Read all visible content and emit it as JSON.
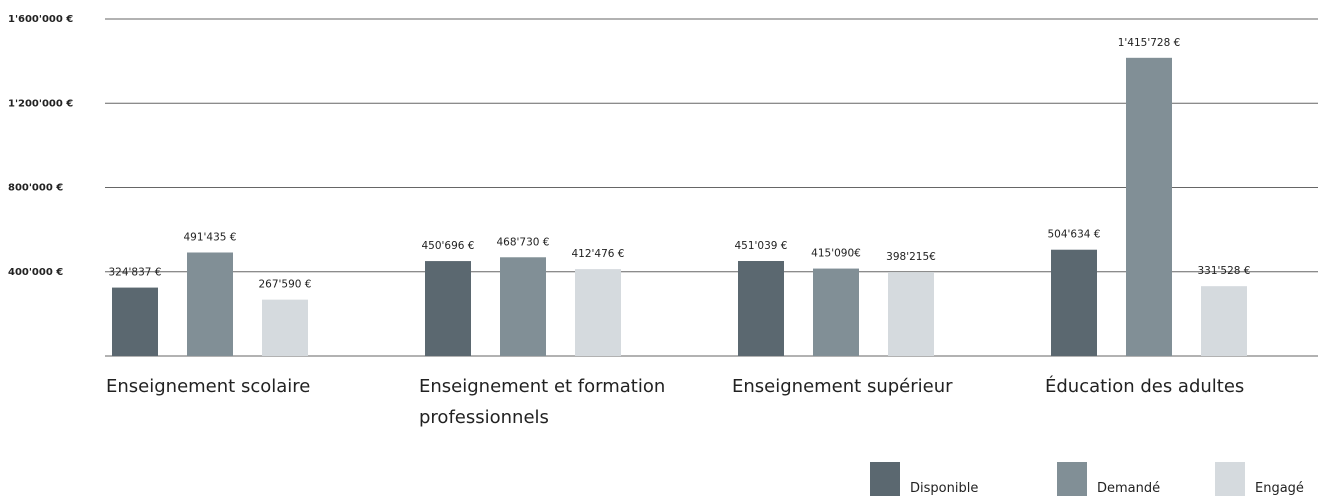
{
  "chart_data": {
    "type": "bar",
    "categories": [
      "Enseignement scolaire",
      "Enseignement et formation professionnels",
      "Enseignement supérieur",
      "Éducation des adultes"
    ],
    "series": [
      {
        "name": "Disponible",
        "color": "#5b6870",
        "values": [
          324837,
          450696,
          451039,
          504634
        ],
        "value_labels": [
          "324'837 €",
          "450'696 €",
          "451'039 €",
          "504'634 €"
        ]
      },
      {
        "name": "Demandé",
        "color": "#818f96",
        "values": [
          491435,
          468730,
          415090,
          1415728
        ],
        "value_labels": [
          "491'435 €",
          "468'730 €",
          "415'090€",
          "1'415'728 €"
        ]
      },
      {
        "name": "Engagé",
        "color": "#d5dade",
        "values": [
          267590,
          412476,
          398215,
          331528
        ],
        "value_labels": [
          "267'590 €",
          "412'476 €",
          "398'215€",
          "331'528 €"
        ]
      }
    ],
    "ylim": [
      0,
      1600000
    ],
    "yticks": [
      {
        "value": 400000,
        "label": "400'000 €"
      },
      {
        "value": 800000,
        "label": "800'000 €"
      },
      {
        "value": 1200000,
        "label": "1'200'000 €"
      },
      {
        "value": 1600000,
        "label": "1'600'000 €"
      }
    ],
    "grid": true,
    "legend": "bottom-right"
  }
}
